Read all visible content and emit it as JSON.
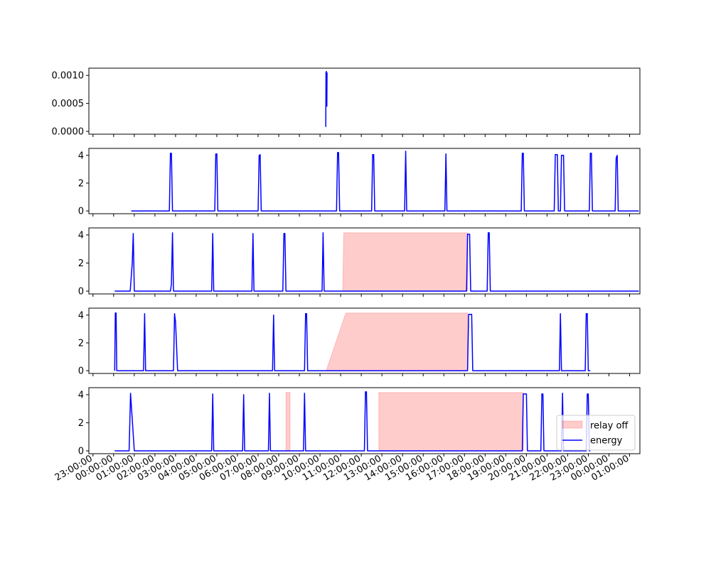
{
  "chart_data": {
    "type": "line",
    "x_tick_labels": [
      "23:00:00",
      "00:00:00",
      "01:00:00",
      "02:00:00",
      "03:00:00",
      "04:00:00",
      "05:00:00",
      "06:00:00",
      "07:00:00",
      "08:00:00",
      "09:00:00",
      "10:00:00",
      "11:00:00",
      "12:00:00",
      "13:00:00",
      "14:00:00",
      "15:00:00",
      "16:00:00",
      "17:00:00",
      "18:00:00",
      "19:00:00",
      "20:00:00",
      "21:00:00",
      "22:00:00",
      "23:00:00",
      "00:00:00",
      "01:00:00"
    ],
    "x_unit": "hours after 23:00:00 on the first tick",
    "xlim": [
      -0.2,
      26.5
    ],
    "legend": {
      "placement": "lower-right",
      "entries": [
        {
          "label": "relay off",
          "color": "#ff0000",
          "kind": "fill"
        },
        {
          "label": "energy",
          "color": "#0000ff",
          "kind": "line"
        }
      ]
    },
    "series_color": "#0000ff",
    "fill_color": "#ff0000",
    "subplots": [
      {
        "ylim": [
          -5e-05,
          0.00113
        ],
        "yticks": [
          0,
          0.0005,
          0.001
        ],
        "ytick_labels": [
          "0.0000",
          "0.0005",
          "0.0010"
        ],
        "energy": [
          [
            11.28,
            8e-05
          ],
          [
            11.29,
            0.00105
          ],
          [
            11.31,
            0.00107
          ],
          [
            11.32,
            0.00104
          ],
          [
            11.33,
            0.00045
          ],
          [
            11.34,
            0.00105
          ]
        ],
        "relay_off": []
      },
      {
        "ylim": [
          -0.2,
          4.5
        ],
        "yticks": [
          0,
          2,
          4
        ],
        "ytick_labels": [
          "0",
          "2",
          "4"
        ],
        "energy": [
          [
            1.85,
            0
          ],
          [
            3.7,
            0
          ],
          [
            3.75,
            4.15
          ],
          [
            3.8,
            4.15
          ],
          [
            3.85,
            0
          ],
          [
            5.9,
            0
          ],
          [
            5.95,
            4.1
          ],
          [
            6.0,
            4.1
          ],
          [
            6.05,
            0
          ],
          [
            8.0,
            0
          ],
          [
            8.05,
            4.0
          ],
          [
            8.1,
            4.05
          ],
          [
            8.15,
            0
          ],
          [
            11.8,
            0
          ],
          [
            11.85,
            4.2
          ],
          [
            11.9,
            4.2
          ],
          [
            11.95,
            0
          ],
          [
            13.5,
            0
          ],
          [
            13.55,
            4.05
          ],
          [
            13.6,
            4.05
          ],
          [
            13.65,
            0
          ],
          [
            15.1,
            0
          ],
          [
            15.15,
            4.3
          ],
          [
            15.2,
            0
          ],
          [
            17.05,
            0
          ],
          [
            17.1,
            4.1
          ],
          [
            17.15,
            0
          ],
          [
            20.75,
            0
          ],
          [
            20.8,
            4.15
          ],
          [
            20.85,
            4.15
          ],
          [
            20.9,
            0
          ],
          [
            22.35,
            0
          ],
          [
            22.4,
            4.05
          ],
          [
            22.5,
            4.05
          ],
          [
            22.55,
            0
          ],
          [
            22.65,
            0
          ],
          [
            22.7,
            4.0
          ],
          [
            22.8,
            4.0
          ],
          [
            22.85,
            0
          ],
          [
            24.05,
            0
          ],
          [
            24.1,
            4.15
          ],
          [
            24.15,
            4.15
          ],
          [
            24.2,
            0
          ],
          [
            25.3,
            0
          ],
          [
            25.35,
            3.8
          ],
          [
            25.4,
            4.0
          ],
          [
            25.45,
            0
          ],
          [
            26.45,
            0
          ]
        ],
        "relay_off": []
      },
      {
        "ylim": [
          -0.2,
          4.5
        ],
        "yticks": [
          0,
          2,
          4
        ],
        "ytick_labels": [
          "0",
          "2",
          "4"
        ],
        "energy": [
          [
            1.05,
            0
          ],
          [
            1.8,
            0
          ],
          [
            1.9,
            2.0
          ],
          [
            1.95,
            4.1
          ],
          [
            2.0,
            0
          ],
          [
            3.75,
            0
          ],
          [
            3.8,
            0.5
          ],
          [
            3.85,
            4.15
          ],
          [
            3.9,
            0
          ],
          [
            5.75,
            0
          ],
          [
            5.8,
            4.1
          ],
          [
            5.85,
            0
          ],
          [
            7.7,
            0
          ],
          [
            7.75,
            4.1
          ],
          [
            7.8,
            0
          ],
          [
            9.2,
            0
          ],
          [
            9.25,
            4.1
          ],
          [
            9.3,
            4.1
          ],
          [
            9.35,
            0
          ],
          [
            11.1,
            0
          ],
          [
            11.15,
            4.15
          ],
          [
            11.2,
            0
          ],
          [
            18.1,
            0
          ],
          [
            18.15,
            4.05
          ],
          [
            18.25,
            4.05
          ],
          [
            18.3,
            0
          ],
          [
            19.1,
            0
          ],
          [
            19.15,
            4.15
          ],
          [
            19.2,
            4.15
          ],
          [
            19.25,
            0
          ],
          [
            26.45,
            0
          ]
        ],
        "relay_off": [
          [
            [
              12.1,
              0
            ],
            [
              12.15,
              4.15
            ],
            [
              18.15,
              4.15
            ],
            [
              18.15,
              0
            ]
          ]
        ]
      },
      {
        "ylim": [
          -0.2,
          4.5
        ],
        "yticks": [
          0,
          2,
          4
        ],
        "ytick_labels": [
          "0",
          "2",
          "4"
        ],
        "energy": [
          [
            1.05,
            0
          ],
          [
            1.08,
            4.15
          ],
          [
            1.12,
            4.15
          ],
          [
            1.15,
            0
          ],
          [
            2.45,
            0
          ],
          [
            2.5,
            4.1
          ],
          [
            2.55,
            0
          ],
          [
            3.9,
            0
          ],
          [
            3.95,
            4.1
          ],
          [
            4.0,
            3.5
          ],
          [
            4.1,
            0
          ],
          [
            8.7,
            0
          ],
          [
            8.75,
            4.0
          ],
          [
            8.8,
            0
          ],
          [
            10.25,
            0
          ],
          [
            10.3,
            4.1
          ],
          [
            10.35,
            4.1
          ],
          [
            10.4,
            0
          ],
          [
            18.15,
            0
          ],
          [
            18.2,
            4.05
          ],
          [
            18.35,
            4.05
          ],
          [
            18.4,
            0
          ],
          [
            22.6,
            0
          ],
          [
            22.65,
            4.1
          ],
          [
            22.7,
            0
          ],
          [
            23.85,
            0
          ],
          [
            23.9,
            4.1
          ],
          [
            23.95,
            4.1
          ],
          [
            24.0,
            0
          ],
          [
            24.1,
            0
          ]
        ],
        "relay_off": [
          [
            [
              11.3,
              0
            ],
            [
              12.25,
              4.15
            ],
            [
              18.15,
              4.15
            ],
            [
              18.15,
              0
            ]
          ]
        ]
      },
      {
        "ylim": [
          -0.2,
          4.5
        ],
        "yticks": [
          0,
          2,
          4
        ],
        "ytick_labels": [
          "0",
          "2",
          "4"
        ],
        "energy": [
          [
            1.05,
            0
          ],
          [
            1.75,
            0
          ],
          [
            1.82,
            4.1
          ],
          [
            2.0,
            0
          ],
          [
            5.75,
            0
          ],
          [
            5.8,
            4.05
          ],
          [
            5.85,
            0
          ],
          [
            7.25,
            0
          ],
          [
            7.3,
            4.0
          ],
          [
            7.35,
            0
          ],
          [
            8.5,
            0
          ],
          [
            8.55,
            4.1
          ],
          [
            8.6,
            0
          ],
          [
            10.2,
            0
          ],
          [
            10.25,
            4.1
          ],
          [
            10.3,
            0
          ],
          [
            13.15,
            0
          ],
          [
            13.2,
            4.2
          ],
          [
            13.25,
            4.2
          ],
          [
            13.3,
            0
          ],
          [
            20.8,
            0
          ],
          [
            20.85,
            4.05
          ],
          [
            21.0,
            4.05
          ],
          [
            21.05,
            0
          ],
          [
            21.7,
            0
          ],
          [
            21.75,
            4.05
          ],
          [
            21.8,
            4.05
          ],
          [
            21.85,
            0
          ],
          [
            22.7,
            0
          ],
          [
            22.75,
            4.1
          ],
          [
            22.8,
            0
          ],
          [
            23.9,
            0
          ],
          [
            23.95,
            4.05
          ],
          [
            24.0,
            4.05
          ],
          [
            24.05,
            0
          ],
          [
            24.1,
            0
          ]
        ],
        "relay_off": [
          [
            [
              9.35,
              0
            ],
            [
              9.35,
              4.15
            ],
            [
              9.55,
              4.15
            ],
            [
              9.55,
              0
            ]
          ],
          [
            [
              13.85,
              0
            ],
            [
              13.85,
              4.15
            ],
            [
              20.85,
              4.15
            ],
            [
              20.85,
              0
            ]
          ]
        ]
      }
    ]
  }
}
